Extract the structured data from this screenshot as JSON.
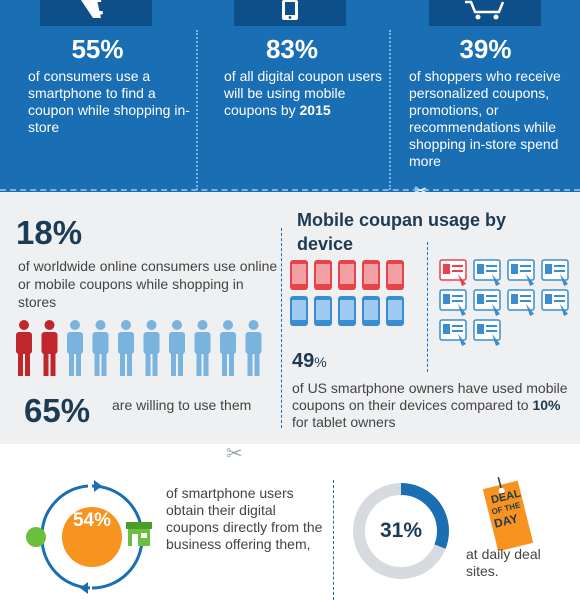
{
  "top": {
    "stats": [
      {
        "percent": "55%",
        "text": "of consumers use a smartphone to find a coupon while shopping in-store",
        "icon": "hand-phone-icon"
      },
      {
        "percent": "83%",
        "text": "of all digital coupon users will be using mobile coupons by",
        "bold": "2015",
        "icon": "tablet-icon"
      },
      {
        "percent": "39%",
        "text": "of shoppers who receive personalized coupons, promotions, or recommendations while shopping in-store spend more",
        "icon": "shopping-cart-icon"
      }
    ]
  },
  "mid": {
    "stat_18": {
      "percent": "18%",
      "text": "of worldwide online consumers use online or mobile coupons while shopping in stores"
    },
    "stat_65": {
      "percent": "65%",
      "text": "are willing to use them"
    },
    "people_icons": {
      "total": 10,
      "highlighted": 2,
      "highlight_color": "#c0272d",
      "base_color": "#7ab3de"
    },
    "device_title": "Mobile coupan usage by device",
    "stat_49": {
      "number": "49",
      "unit": "%",
      "text_before": "of US smartphone owners have used mobile coupons on their devices compared to",
      "bold": "10%",
      "text_after": "for tablet owners"
    },
    "device_icons": {
      "phones_red": 5,
      "phones_blue": 5,
      "tablets": 10,
      "red_color": "#e8434a",
      "blue_color": "#3b8dd1"
    }
  },
  "bottom": {
    "stat_54": {
      "percent": "54%",
      "text": "of smartphone users obtain their digital coupons directly from the business offering them,"
    },
    "stat_31": {
      "percent": "31%",
      "text": "at daily deal sites.",
      "fraction": 0.31
    },
    "tag": {
      "line1": "DEAL",
      "line2": "OF THE",
      "line3": "DAY"
    },
    "colors": {
      "orange": "#f7931e",
      "green": "#6cbf3c",
      "blue": "#1a6eb4",
      "grey": "#d7dbdf"
    }
  },
  "icons": {
    "scissors": "scissors-icon"
  }
}
